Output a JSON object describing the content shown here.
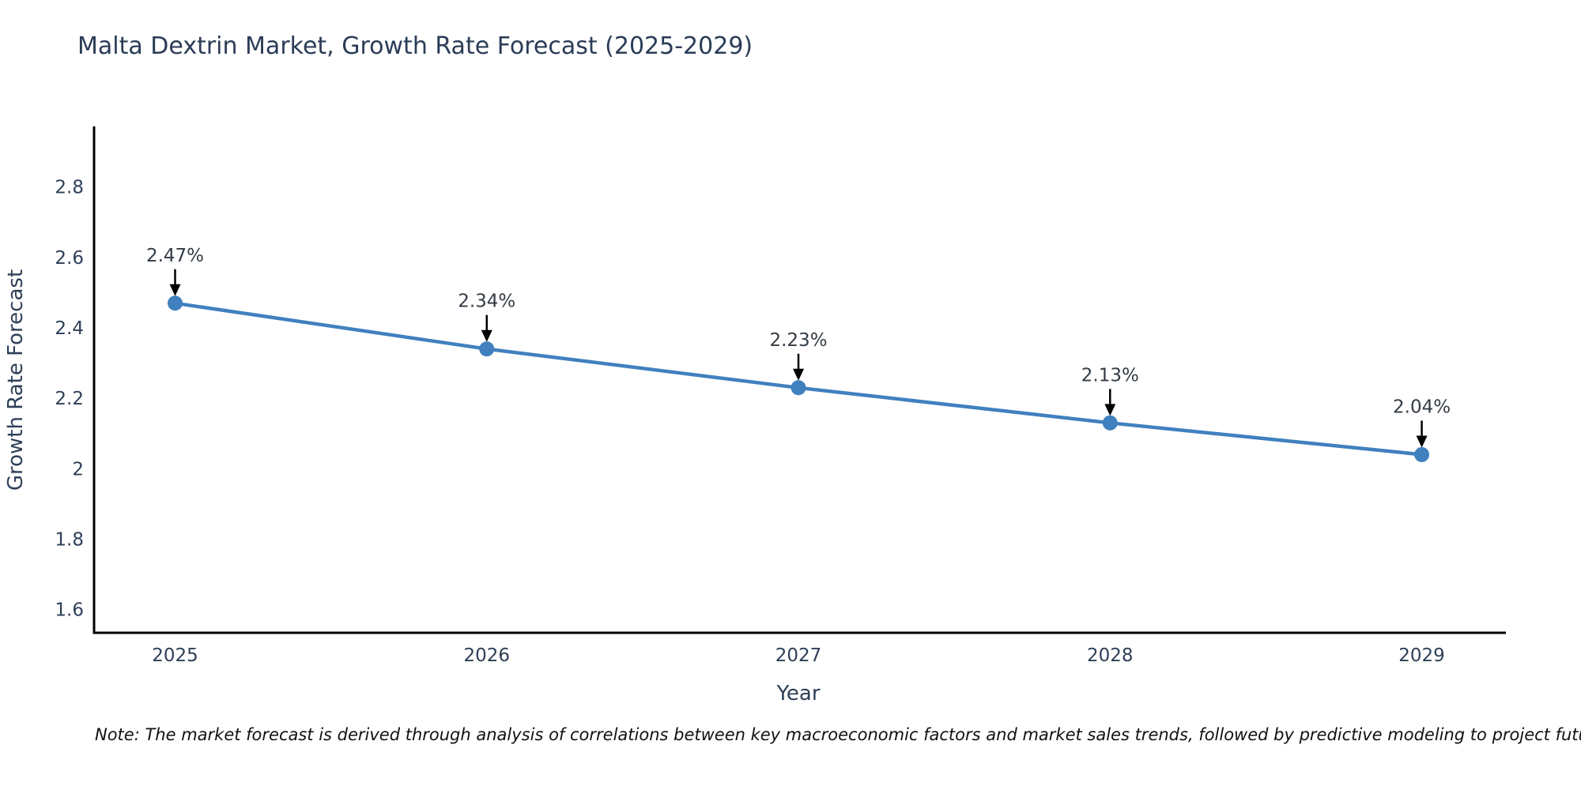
{
  "title": "Malta Dextrin Market, Growth Rate Forecast (2025-2029)",
  "note": "Note: The market forecast is derived through analysis of correlations between key macroeconomic factors and market sales trends, followed by predictive modeling to project future sales",
  "colors": {
    "line": "#4080bf",
    "marker": "#4080bf",
    "axis": "#000000",
    "title_text": "#2b3c57",
    "tick_text": "#2e3f57",
    "axis_title_text": "#2e3f57",
    "annotation_text": "#333b45",
    "arrow": "#000000",
    "note_text": "#111111",
    "background": "#ffffff"
  },
  "chart_data": {
    "type": "line",
    "title": "Malta Dextrin Market, Growth Rate Forecast (2025-2029)",
    "xlabel": "Year",
    "ylabel": "Growth Rate Forecast",
    "x": [
      2025,
      2026,
      2027,
      2028,
      2029
    ],
    "values": [
      2.47,
      2.34,
      2.23,
      2.13,
      2.04
    ],
    "point_labels": [
      "2.47%",
      "2.34%",
      "2.23%",
      "2.13%",
      "2.04%"
    ],
    "x_tick_labels": [
      "2025",
      "2026",
      "2027",
      "2028",
      "2029"
    ],
    "y_ticks": [
      1.6,
      1.8,
      2.0,
      2.2,
      2.4,
      2.6,
      2.8
    ],
    "y_tick_labels": [
      "1.6",
      "1.8",
      "2",
      "2.2",
      "2.4",
      "2.6",
      "2.8"
    ],
    "xlim": [
      2024.74,
      2029.27
    ],
    "ylim": [
      1.534,
      2.972
    ],
    "grid": false,
    "legend": "none",
    "marker": "circle",
    "annotation_arrows": true,
    "units": "percent"
  }
}
